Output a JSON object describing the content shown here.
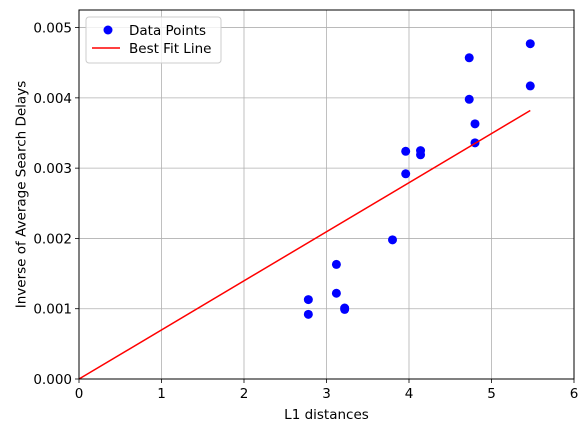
{
  "chart_data": {
    "type": "scatter",
    "xlabel": "L1 distances",
    "ylabel": "Inverse of Average Search Delays",
    "xlim": [
      0,
      6
    ],
    "ylim": [
      0,
      0.00525
    ],
    "x_ticks": [
      "0",
      "1",
      "2",
      "3",
      "4",
      "5",
      "6"
    ],
    "y_ticks": [
      "0.000",
      "0.001",
      "0.002",
      "0.003",
      "0.004",
      "0.005"
    ],
    "grid": true,
    "legend_position": "top-left",
    "series": [
      {
        "name": "Data Points",
        "kind": "scatter",
        "color": "#0000ff",
        "points": [
          [
            2.78,
            0.00113
          ],
          [
            2.78,
            0.00092
          ],
          [
            3.12,
            0.00163
          ],
          [
            3.12,
            0.00122
          ],
          [
            3.22,
            0.00101
          ],
          [
            3.22,
            0.00099
          ],
          [
            3.8,
            0.00198
          ],
          [
            3.96,
            0.00324
          ],
          [
            3.96,
            0.00292
          ],
          [
            4.14,
            0.00325
          ],
          [
            4.14,
            0.00319
          ],
          [
            4.73,
            0.00457
          ],
          [
            4.73,
            0.00398
          ],
          [
            4.8,
            0.00363
          ],
          [
            4.8,
            0.00336
          ],
          [
            5.47,
            0.00477
          ],
          [
            5.47,
            0.00417
          ]
        ]
      },
      {
        "name": "Best Fit Line",
        "kind": "line",
        "color": "#ff0000",
        "points": [
          [
            0,
            0
          ],
          [
            5.47,
            0.00382
          ]
        ]
      }
    ]
  }
}
